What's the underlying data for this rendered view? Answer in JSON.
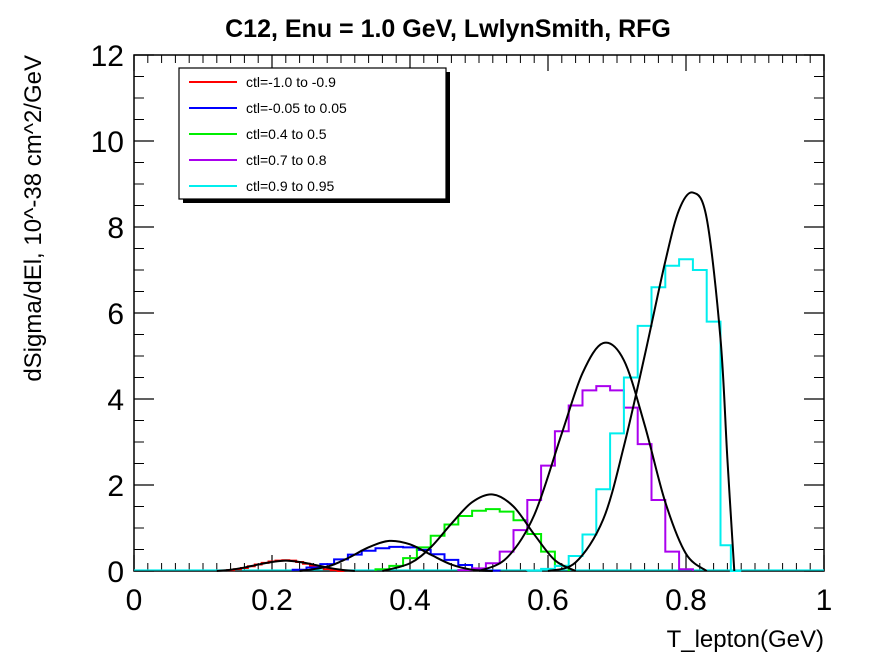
{
  "chart_data": {
    "type": "line",
    "title": "C12, Enu = 1.0 GeV, LwlynSmith, RFG",
    "xlabel": "T_lepton(GeV)",
    "ylabel": "dSigma/dEl, 10^-38 cm^2/GeV",
    "xlim": [
      0,
      1
    ],
    "ylim": [
      0,
      12
    ],
    "x_ticks": [
      "0",
      "0.2",
      "0.4",
      "0.6",
      "0.8",
      "1"
    ],
    "y_ticks": [
      "0",
      "2",
      "4",
      "6",
      "8",
      "10",
      "12"
    ],
    "grid": false,
    "legend_position": "top-left",
    "series": [
      {
        "name": "ctl=-1.0 to -0.9",
        "color": "#ff0000",
        "style": "histogram",
        "x": [
          0.14,
          0.15,
          0.16,
          0.17,
          0.18,
          0.19,
          0.2,
          0.21,
          0.22,
          0.23,
          0.24,
          0.25,
          0.26,
          0.27,
          0.28,
          0.29,
          0.3
        ],
        "y": [
          0.02,
          0.04,
          0.07,
          0.11,
          0.15,
          0.19,
          0.22,
          0.24,
          0.25,
          0.24,
          0.21,
          0.17,
          0.12,
          0.08,
          0.04,
          0.02,
          0.0
        ]
      },
      {
        "name": "ctl=-0.05 to 0.05",
        "color": "#0000ff",
        "style": "histogram",
        "x": [
          0.24,
          0.26,
          0.28,
          0.3,
          0.32,
          0.34,
          0.36,
          0.38,
          0.4,
          0.42,
          0.44,
          0.46,
          0.48,
          0.5,
          0.52
        ],
        "y": [
          0.03,
          0.08,
          0.16,
          0.27,
          0.38,
          0.47,
          0.53,
          0.56,
          0.55,
          0.49,
          0.39,
          0.26,
          0.14,
          0.05,
          0.01
        ]
      },
      {
        "name": "ctl=0.4 to 0.5",
        "color": "#00ee00",
        "style": "histogram",
        "x": [
          0.36,
          0.38,
          0.4,
          0.42,
          0.44,
          0.46,
          0.48,
          0.5,
          0.52,
          0.54,
          0.56,
          0.58,
          0.6,
          0.62
        ],
        "y": [
          0.04,
          0.12,
          0.3,
          0.55,
          0.82,
          1.08,
          1.28,
          1.4,
          1.44,
          1.38,
          1.18,
          0.86,
          0.45,
          0.12
        ]
      },
      {
        "name": "ctl=0.7 to 0.8",
        "color": "#aa00ee",
        "style": "histogram",
        "x": [
          0.48,
          0.5,
          0.52,
          0.54,
          0.56,
          0.58,
          0.6,
          0.62,
          0.64,
          0.66,
          0.68,
          0.7,
          0.72,
          0.74,
          0.76,
          0.78,
          0.8
        ],
        "y": [
          0.02,
          0.06,
          0.18,
          0.45,
          0.95,
          1.65,
          2.45,
          3.25,
          3.85,
          4.2,
          4.3,
          4.2,
          3.8,
          2.95,
          1.65,
          0.45,
          0.04
        ]
      },
      {
        "name": "ctl=0.9 to 0.95",
        "color": "#00eeee",
        "style": "histogram",
        "x": [
          0.58,
          0.6,
          0.62,
          0.64,
          0.66,
          0.68,
          0.7,
          0.72,
          0.74,
          0.76,
          0.78,
          0.8,
          0.82,
          0.84,
          0.86,
          0.87
        ],
        "y": [
          0.01,
          0.05,
          0.12,
          0.35,
          0.85,
          1.9,
          3.2,
          4.5,
          5.7,
          6.6,
          7.1,
          7.25,
          7.0,
          5.8,
          0.6,
          0.0
        ]
      },
      {
        "name": "",
        "color": "#000000",
        "style": "curve",
        "x": [
          0.12,
          0.14,
          0.16,
          0.18,
          0.2,
          0.22,
          0.24,
          0.26,
          0.28,
          0.3,
          0.32
        ],
        "y": [
          0.0,
          0.03,
          0.08,
          0.15,
          0.21,
          0.24,
          0.21,
          0.15,
          0.08,
          0.03,
          0.0
        ]
      },
      {
        "name": "",
        "color": "#000000",
        "style": "curve",
        "x": [
          0.24,
          0.28,
          0.31,
          0.34,
          0.37,
          0.4,
          0.43,
          0.46,
          0.49,
          0.52
        ],
        "y": [
          0.0,
          0.1,
          0.3,
          0.55,
          0.7,
          0.62,
          0.38,
          0.15,
          0.03,
          0.0
        ]
      },
      {
        "name": "",
        "color": "#000000",
        "style": "curve",
        "x": [
          0.36,
          0.4,
          0.43,
          0.46,
          0.49,
          0.52,
          0.55,
          0.58,
          0.61,
          0.64
        ],
        "y": [
          0.0,
          0.18,
          0.55,
          1.1,
          1.6,
          1.78,
          1.5,
          0.85,
          0.25,
          0.0
        ]
      },
      {
        "name": "",
        "color": "#000000",
        "style": "curve",
        "x": [
          0.5,
          0.54,
          0.58,
          0.62,
          0.65,
          0.68,
          0.71,
          0.74,
          0.77,
          0.8,
          0.83
        ],
        "y": [
          0.0,
          0.3,
          1.3,
          3.2,
          4.6,
          5.3,
          4.9,
          3.4,
          1.6,
          0.4,
          0.0
        ]
      },
      {
        "name": "",
        "color": "#000000",
        "style": "curve",
        "x": [
          0.6,
          0.64,
          0.68,
          0.71,
          0.74,
          0.77,
          0.79,
          0.81,
          0.83,
          0.85,
          0.86,
          0.87
        ],
        "y": [
          0.0,
          0.2,
          1.2,
          2.9,
          5.0,
          7.2,
          8.4,
          8.8,
          8.2,
          5.4,
          2.6,
          0.0
        ]
      }
    ]
  }
}
